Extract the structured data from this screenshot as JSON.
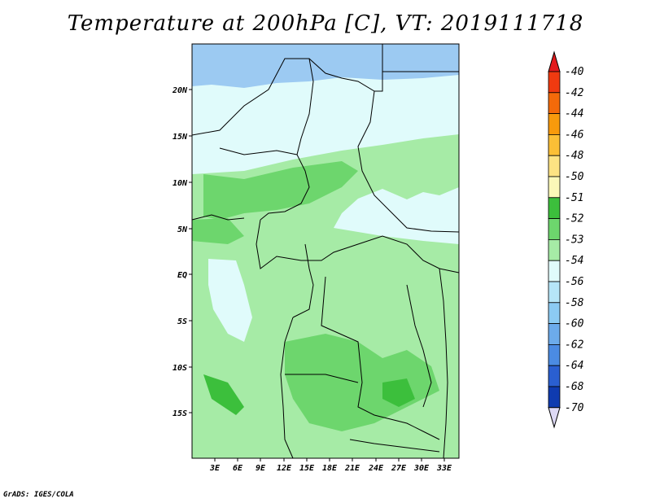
{
  "title": "Temperature at 200hPa [C], VT: 2019111718",
  "credit": "GrADS: IGES/COLA",
  "lat_labels": [
    "20N",
    "15N",
    "10N",
    "5N",
    "EQ",
    "5S",
    "10S",
    "15S"
  ],
  "lon_labels": [
    "3E",
    "6E",
    "9E",
    "12E",
    "15E",
    "18E",
    "21E",
    "24E",
    "27E",
    "30E",
    "33E"
  ],
  "colorbar": {
    "labels": [
      "-40",
      "-42",
      "-44",
      "-46",
      "-48",
      "-50",
      "-51",
      "-52",
      "-53",
      "-54",
      "-56",
      "-58",
      "-60",
      "-62",
      "-64",
      "-68",
      "-70"
    ],
    "colors": [
      "#e31a1c",
      "#f03a10",
      "#f46a0a",
      "#f89a0c",
      "#fbbf36",
      "#fde383",
      "#fbf8b8",
      "#3cbf3c",
      "#6dd66d",
      "#a6eba6",
      "#e0fbfb",
      "#b6e6f8",
      "#8ccbf3",
      "#6cabeb",
      "#4b8be3",
      "#2a5fd1",
      "#0f3bb0",
      "#0a1aa0",
      "#0a0f7a",
      "#ddd9f5"
    ]
  }
}
